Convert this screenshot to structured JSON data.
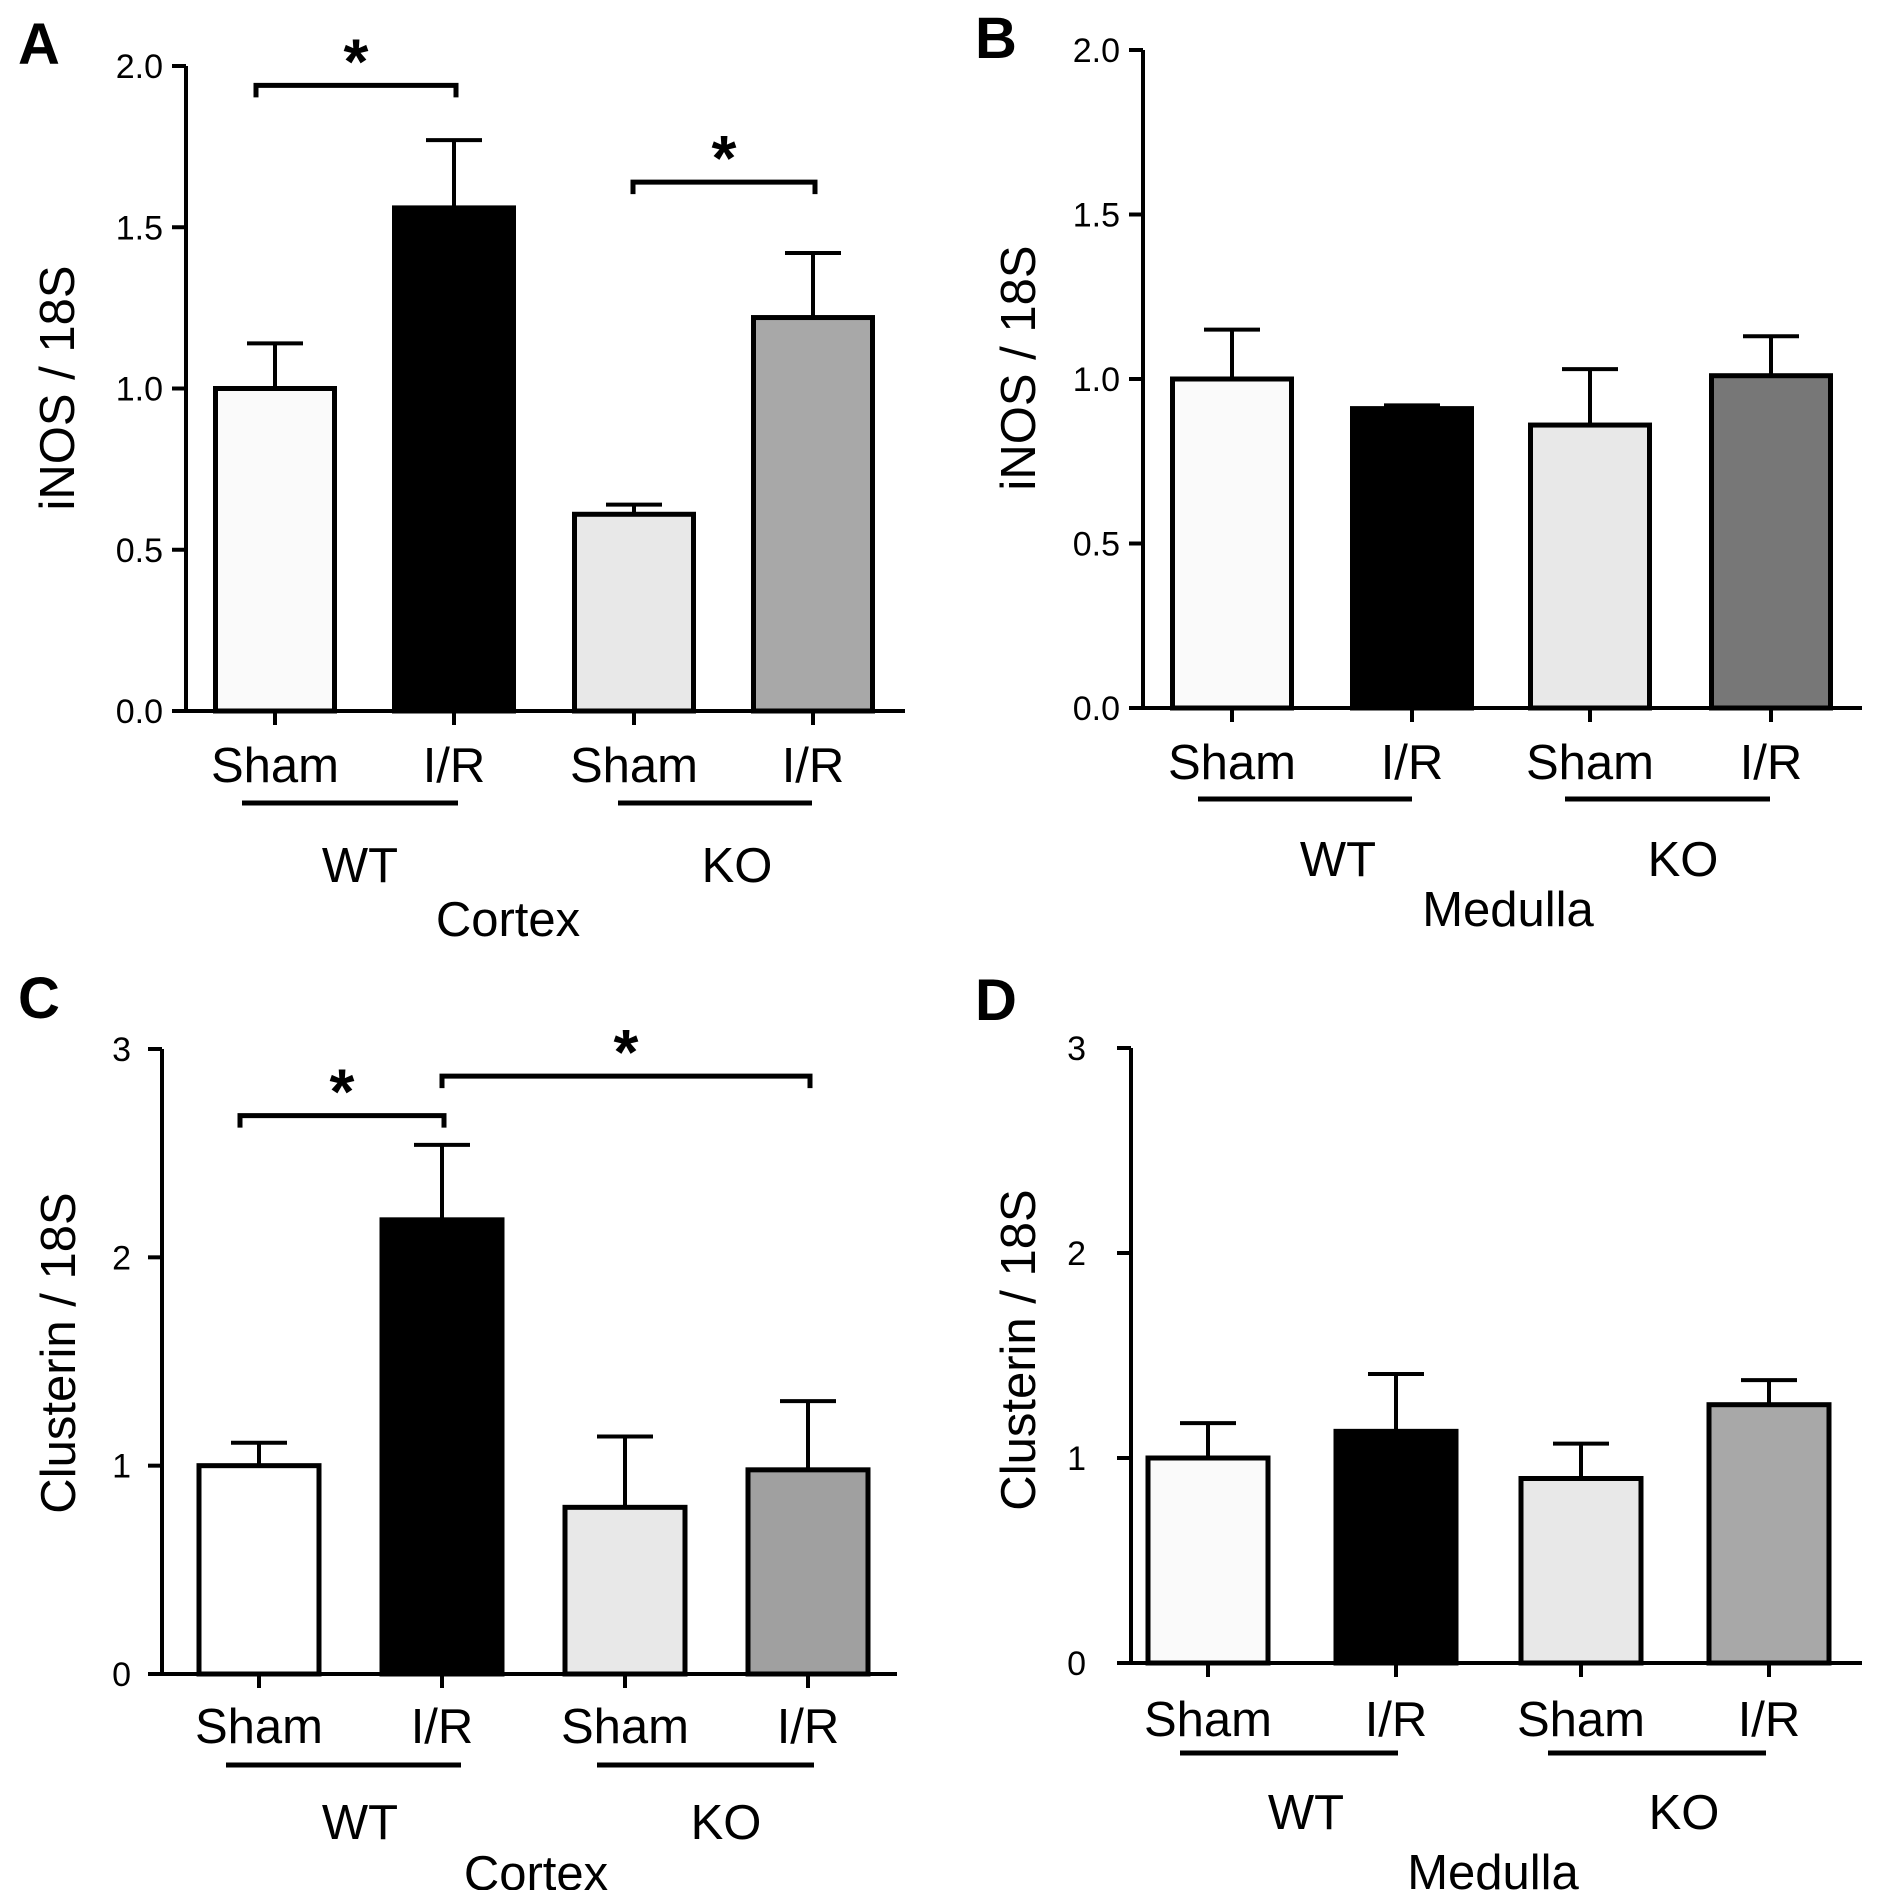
{
  "figure": {
    "background": "#ffffff"
  },
  "chart_data": [
    {
      "panel": "A",
      "type": "bar",
      "categories": [
        "Sham",
        "I/R",
        "Sham",
        "I/R"
      ],
      "groups": [
        {
          "label": "WT",
          "categories": [
            0,
            1
          ]
        },
        {
          "label": "KO",
          "categories": [
            2,
            3
          ]
        }
      ],
      "region": "Cortex",
      "ylabel": "iNOS / 18S",
      "ylim": [
        0,
        2.0
      ],
      "yticks": [
        0.0,
        0.5,
        1.0,
        1.5,
        2.0
      ],
      "ytick_labels": [
        "0.0",
        "0.5",
        "1.0",
        "1.5",
        "2.0"
      ],
      "values": [
        1.0,
        1.56,
        0.61,
        1.22
      ],
      "errors": [
        0.14,
        0.21,
        0.03,
        0.2
      ],
      "colors": [
        "#fafafa",
        "#000000",
        "#e8e8e8",
        "#a8a8a8"
      ],
      "significance": [
        {
          "from": 0,
          "to": 1,
          "y": 1.94,
          "label": "*"
        },
        {
          "from": 2,
          "to": 3,
          "y": 1.64,
          "label": "*"
        }
      ],
      "grid": false,
      "legend": "none"
    },
    {
      "panel": "B",
      "type": "bar",
      "categories": [
        "Sham",
        "I/R",
        "Sham",
        "I/R"
      ],
      "groups": [
        {
          "label": "WT",
          "categories": [
            0,
            1
          ]
        },
        {
          "label": "KO",
          "categories": [
            2,
            3
          ]
        }
      ],
      "region": "Medulla",
      "ylabel": "iNOS / 18S",
      "ylim": [
        0,
        2.0
      ],
      "yticks": [
        0.0,
        0.5,
        1.0,
        1.5,
        2.0
      ],
      "ytick_labels": [
        "0.0",
        "0.5",
        "1.0",
        "1.5",
        "2.0"
      ],
      "values": [
        1.0,
        0.91,
        0.86,
        1.01
      ],
      "errors": [
        0.15,
        0.01,
        0.17,
        0.12
      ],
      "colors": [
        "#fafafa",
        "#000000",
        "#e8e8e8",
        "#777777"
      ],
      "significance": [],
      "grid": false,
      "legend": "none"
    },
    {
      "panel": "C",
      "type": "bar",
      "categories": [
        "Sham",
        "I/R",
        "Sham",
        "I/R"
      ],
      "groups": [
        {
          "label": "WT",
          "categories": [
            0,
            1
          ]
        },
        {
          "label": "KO",
          "categories": [
            2,
            3
          ]
        }
      ],
      "region": "Cortex",
      "ylabel": "Clusterin / 18S",
      "ylim": [
        0,
        3
      ],
      "yticks": [
        0,
        1,
        2,
        3
      ],
      "ytick_labels": [
        "0",
        "1",
        "2",
        "3"
      ],
      "values": [
        1.0,
        2.18,
        0.8,
        0.98
      ],
      "errors": [
        0.11,
        0.36,
        0.34,
        0.33
      ],
      "colors": [
        "#ffffff",
        "#000000",
        "#e8e8e8",
        "#a0a0a0"
      ],
      "significance": [
        {
          "from": 0,
          "to": 1,
          "y": 2.68,
          "label": "*"
        },
        {
          "from": 1,
          "to": 3,
          "y": 2.87,
          "label": "*"
        }
      ],
      "grid": false,
      "legend": "none"
    },
    {
      "panel": "D",
      "type": "bar",
      "categories": [
        "Sham",
        "I/R",
        "Sham",
        "I/R"
      ],
      "groups": [
        {
          "label": "WT",
          "categories": [
            0,
            1
          ]
        },
        {
          "label": "KO",
          "categories": [
            2,
            3
          ]
        }
      ],
      "region": "Medulla",
      "ylabel": "Clusterin / 18S",
      "ylim": [
        0,
        3
      ],
      "yticks": [
        0,
        1,
        2,
        3
      ],
      "ytick_labels": [
        "0",
        "1",
        "2",
        "3"
      ],
      "values": [
        1.0,
        1.13,
        0.9,
        1.26
      ],
      "errors": [
        0.17,
        0.28,
        0.17,
        0.12
      ],
      "colors": [
        "#fafafa",
        "#000000",
        "#e8e8e8",
        "#a8a8a8"
      ],
      "significance": [],
      "grid": false,
      "legend": "none"
    }
  ]
}
